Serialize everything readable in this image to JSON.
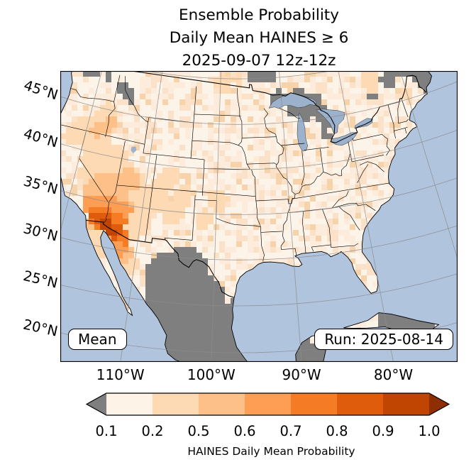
{
  "title": {
    "line1": "Ensemble Probability",
    "line2": "Daily Mean HAINES ≥ 6",
    "line3": "2025-09-07 12z-12z"
  },
  "map": {
    "mean_label": "Mean",
    "run_label": "Run: 2025-08-14"
  },
  "axes": {
    "lat_labels": [
      {
        "text": "45°N",
        "lat": 45
      },
      {
        "text": "40°N",
        "lat": 40
      },
      {
        "text": "35°N",
        "lat": 35
      },
      {
        "text": "30°N",
        "lat": 30
      },
      {
        "text": "25°N",
        "lat": 25
      },
      {
        "text": "20°N",
        "lat": 20
      }
    ],
    "lon_labels": [
      {
        "text": "110°W",
        "lon": -110
      },
      {
        "text": "100°W",
        "lon": -100
      },
      {
        "text": "90°W",
        "lon": -90
      },
      {
        "text": "80°W",
        "lon": -80
      }
    ]
  },
  "colorbar": {
    "label": "HAINES Daily Mean Probability",
    "tick_labels": [
      "0.1",
      "0.2",
      "0.5",
      "0.6",
      "0.7",
      "0.8",
      "0.9",
      "1.0"
    ],
    "segment_colors": [
      "#fdf3e6",
      "#fdd9b4",
      "#fdc088",
      "#fd9e54",
      "#f57b24",
      "#e05c0d",
      "#c14502"
    ],
    "under_color": "#7f7f7f",
    "over_color": "#8f2d04"
  },
  "chart_data": {
    "type": "heatmap",
    "title": "Ensemble Probability Daily Mean HAINES ≥ 6",
    "valid_period": "2025-09-07 12z-12z",
    "model_run": "2025-08-14",
    "statistic": "Mean",
    "variable": "HAINES Daily Mean Probability",
    "probability_levels": [
      0.1,
      0.2,
      0.5,
      0.6,
      0.7,
      0.8,
      0.9,
      1.0
    ],
    "lat_range": [
      18,
      51
    ],
    "lon_range": [
      -126,
      -62
    ],
    "colors": {
      "ocean": "#b0c4de",
      "land_base": "#fdf2e6",
      "masked": "#7f7f7f",
      "lake": "#9bb1cc",
      "graticule": "#8c8c8c",
      "border": "#000000"
    },
    "hotspots": {
      "mask_regions": [
        [
          -104.5,
          23.5,
          3.2
        ],
        [
          -102,
          24.5,
          3
        ],
        [
          -100,
          22.5,
          3
        ],
        [
          -99,
          20,
          3
        ],
        [
          -103.5,
          20.5,
          2.5
        ],
        [
          -105.5,
          26.5,
          2.2
        ],
        [
          -103.5,
          27.5,
          2.2
        ],
        [
          -101.5,
          26.5,
          2
        ],
        [
          -104,
          29.5,
          1.8
        ],
        [
          -102.6,
          29.2,
          1.5
        ],
        [
          -106.3,
          28.2,
          2
        ],
        [
          -98.6,
          23.6,
          1.8
        ],
        [
          -96.5,
          20.5,
          2
        ],
        [
          -89.5,
          19,
          1.8
        ],
        [
          -79.5,
          21.6,
          1.6
        ],
        [
          -76.2,
          20.7,
          1.4
        ],
        [
          -122.3,
          48.7,
          0.9
        ],
        [
          -120.9,
          48.8,
          0.8
        ],
        [
          -118.6,
          48.8,
          0.7
        ],
        [
          -115.8,
          47.7,
          0.9
        ],
        [
          -114.6,
          47,
          0.7
        ],
        [
          -90.8,
          47.4,
          1
        ],
        [
          -87.6,
          47.1,
          1.2
        ],
        [
          -85.6,
          46.4,
          1.3
        ],
        [
          -84.3,
          45.3,
          1.1
        ],
        [
          -88.6,
          45.9,
          0.8
        ],
        [
          -83.5,
          44.4,
          0.9
        ],
        [
          -86.9,
          44.9,
          0.7
        ],
        [
          -84.2,
          42.7,
          0.7
        ],
        [
          -94.2,
          50.3,
          1
        ],
        [
          -92.3,
          49.9,
          0.8
        ],
        [
          -72.3,
          47.6,
          1.2
        ],
        [
          -69.6,
          48.4,
          1.1
        ],
        [
          -66.2,
          46.9,
          1.6
        ],
        [
          -76,
          46.4,
          0.8
        ]
      ],
      "prob_regions": [
        [
          -116,
          38.5,
          3.1,
          2
        ],
        [
          -113,
          36.5,
          2.8,
          2
        ],
        [
          -118,
          41,
          2,
          2
        ],
        [
          -120.5,
          42.3,
          1.4,
          2
        ],
        [
          -117.5,
          44,
          1.7,
          2
        ],
        [
          -121.8,
          41.3,
          1.1,
          2
        ],
        [
          -108.6,
          36.3,
          1.8,
          2
        ],
        [
          -107,
          38.6,
          1.4,
          2
        ],
        [
          -111.5,
          33.6,
          2.4,
          2
        ],
        [
          -106,
          34.8,
          1.4,
          2
        ],
        [
          -104.5,
          36.8,
          1.2,
          2
        ],
        [
          -101.5,
          34.5,
          1.1,
          2
        ],
        [
          -99.8,
          36.6,
          1.3,
          2
        ],
        [
          -115.6,
          30.9,
          1.4,
          2
        ],
        [
          -114.6,
          30,
          1.2,
          2
        ],
        [
          -110.8,
          28.4,
          1.1,
          2
        ],
        [
          -99.5,
          49.7,
          1.2,
          2
        ],
        [
          -75.4,
          47.7,
          1.4,
          2
        ],
        [
          -70,
          45.3,
          0.9,
          2
        ],
        [
          -97.5,
          49.6,
          0.9,
          2
        ],
        [
          -115.5,
          36.6,
          1.9,
          3
        ],
        [
          -113.6,
          35,
          1.8,
          3
        ],
        [
          -117,
          35.4,
          1.4,
          3
        ],
        [
          -112.6,
          37.6,
          1.4,
          3
        ],
        [
          -118.2,
          42.6,
          0.9,
          3
        ],
        [
          -116.9,
          43.6,
          0.9,
          3
        ],
        [
          -111.6,
          29.6,
          1.2,
          3
        ],
        [
          -116.5,
          32.2,
          0.8,
          3
        ],
        [
          -114.9,
          34.1,
          1.7,
          4
        ],
        [
          -116.3,
          34.4,
          1.2,
          4
        ],
        [
          -112.9,
          33.9,
          1.4,
          4
        ],
        [
          -112.4,
          30.6,
          1.3,
          4
        ],
        [
          -115.3,
          33.2,
          1.3,
          5
        ],
        [
          -113.7,
          32.7,
          1.4,
          5
        ],
        [
          -116.2,
          33.7,
          0.8,
          5
        ],
        [
          -112,
          31.4,
          0.9,
          5
        ],
        [
          -114.8,
          32.9,
          1,
          6
        ],
        [
          -113.1,
          32.1,
          0.9,
          6
        ],
        [
          -115.9,
          33.1,
          0.6,
          6
        ],
        [
          -114.4,
          32.5,
          0.55,
          7
        ],
        [
          -113.5,
          31.8,
          0.45,
          7
        ]
      ]
    }
  }
}
